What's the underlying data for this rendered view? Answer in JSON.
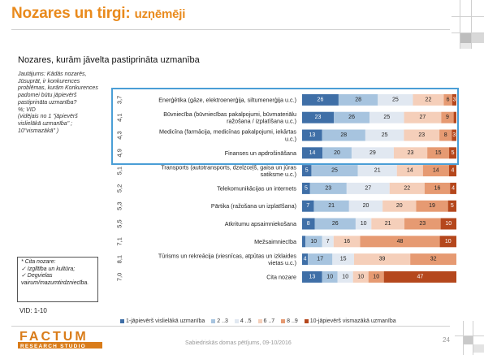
{
  "header": {
    "title_main": "Nozares un tirgi:",
    "title_sub": "uzņēmēji"
  },
  "chart_heading": "Nozares, kurām jāvelta pastiprināta uzmanība",
  "question_lines": [
    "Jautājums: Kādās nozarēs,",
    "Jūsuprāt, ir konkurences",
    "problēmas, kurām Konkurences",
    "padomei būtu jāpievērš",
    "pastiprināta uzmanība?",
    "%; VID",
    "(vidējais no 1 \"jāpievērš",
    "vislielākā uzmanība\" ;",
    "10\"vismazākā\" )"
  ],
  "footnote_lines": [
    "* Cita nozare:",
    "✓ Izglītība un kultūra;",
    "✓ Degvielas",
    "vairum/mazumtirdzniecība."
  ],
  "vid_label": "VID: 1-10",
  "footer": {
    "logo_top": "FACTUM",
    "logo_bottom": "RESEARCH STUDIO",
    "source": "Sabiedriskās domas pētījums, 09-10/2016",
    "page_number": "24"
  },
  "colors": {
    "title": "#e98a1c",
    "highlight_border": "#4a9ed6",
    "logo": "#d97c1a"
  },
  "chart_data": {
    "type": "bar",
    "orientation": "horizontal",
    "stacked": true,
    "percent": true,
    "legend_position": "bottom",
    "categories": [
      {
        "label": [
          "Enerģētika (gāze, elektroenerģija, siltumenerģija u.c.)"
        ],
        "vid": "3,7",
        "values": [
          26,
          28,
          25,
          22,
          6,
          3
        ]
      },
      {
        "label": [
          "Būvniecība (būvniecības pakalpojumi, būvmateriālu",
          "ražošana / izplatīšana u.c.)"
        ],
        "vid": "4,1",
        "values": [
          23,
          26,
          25,
          27,
          9,
          2
        ]
      },
      {
        "label": [
          "Medicīna (farmācija, medicīnas pakalpojumi, iekārtas",
          "u.c.)"
        ],
        "vid": "4,3",
        "values": [
          13,
          28,
          25,
          23,
          8,
          3
        ]
      },
      {
        "label": [
          "Finanses un apdrošināšana"
        ],
        "vid": "4,9",
        "values": [
          14,
          20,
          29,
          23,
          15,
          5
        ]
      },
      {
        "label": [
          "Transports (autotransports, dzelzceļš, gaisa un jūras",
          "satiksme u.c.)"
        ],
        "vid": "5,1",
        "values": [
          5,
          25,
          21,
          14,
          14,
          4
        ]
      },
      {
        "label": [
          "Telekomunikācijas un internets"
        ],
        "vid": "5,2",
        "values": [
          5,
          23,
          27,
          22,
          16,
          4
        ]
      },
      {
        "label": [
          "Pārtika (ražošana un izplatīšana)"
        ],
        "vid": "5,3",
        "values": [
          7,
          21,
          20,
          20,
          19,
          5
        ]
      },
      {
        "label": [
          "Atkritumu apsaimniekošana"
        ],
        "vid": "5,5",
        "values": [
          8,
          26,
          10,
          21,
          23,
          10
        ]
      },
      {
        "label": [
          "Mežsaimniecība"
        ],
        "vid": "7,1",
        "values": [
          2,
          10,
          7,
          16,
          48,
          10
        ]
      },
      {
        "label": [
          "Tūrisms un rekreācija (viesnīcas, atpūtas un izklaides",
          "vietas u.c.)"
        ],
        "vid": "8,1",
        "values": [
          4,
          17,
          15,
          39,
          32,
          0
        ]
      },
      {
        "label": [
          "Cita nozare"
        ],
        "vid": "7,0",
        "values": [
          13,
          10,
          10,
          10,
          10,
          47
        ]
      }
    ],
    "series": [
      {
        "name": "1-jāpievērš vislielākā uzmanība",
        "color": "#3f6fa7",
        "text_color": "#ffffff"
      },
      {
        "name": "2 ..3",
        "color": "#a7c4df",
        "text_color": "#222222"
      },
      {
        "name": "4 ..5",
        "color": "#e1e8f1",
        "text_color": "#222222"
      },
      {
        "name": "6 ..7",
        "color": "#f5cfba",
        "text_color": "#222222"
      },
      {
        "name": "8 ..9",
        "color": "#e69a72",
        "text_color": "#222222"
      },
      {
        "name": "10-jāpievērš vismazākā uzmanība",
        "color": "#b5471c",
        "text_color": "#ffffff"
      }
    ],
    "highlighted_rows": [
      0,
      1,
      2,
      3
    ]
  }
}
